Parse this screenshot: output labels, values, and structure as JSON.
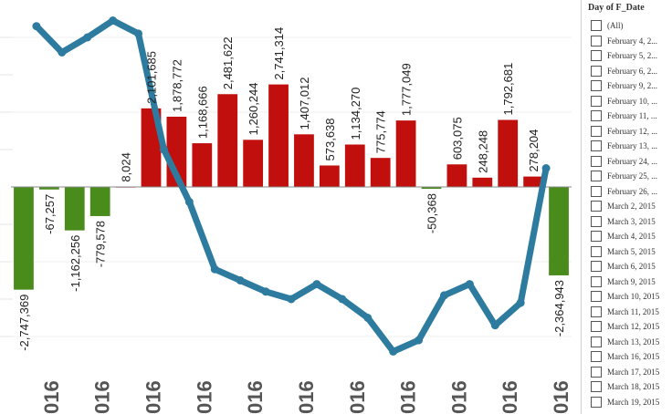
{
  "chart_data": {
    "type": "bar",
    "bar_values": [
      -2747369,
      -67257,
      -1162256,
      -779578,
      8024,
      2101685,
      1878772,
      1168666,
      2481622,
      1260244,
      2741314,
      1407012,
      573638,
      1134270,
      775774,
      1777049,
      -50368,
      603075,
      248248,
      1792681,
      278204,
      -2364943
    ],
    "bar_labels": [
      "-2,747,369",
      "-67,257",
      "-1,162,256",
      "-779,578",
      "8,024",
      "2,101,685",
      "1,878,772",
      "1,168,666",
      "2,481,622",
      "1,260,244",
      "2,741,314",
      "1,407,012",
      "573,638",
      "1,134,270",
      "775,774",
      "1,777,049",
      "-50,368",
      "603,075",
      "248,248",
      "1,792,681",
      "278,204",
      "-2,364,943"
    ],
    "line_values": [
      4300000,
      3600000,
      4000000,
      4450000,
      4100000,
      1000000,
      -400000,
      -2200000,
      -2500000,
      -2800000,
      -3000000,
      -2600000,
      -3000000,
      -3500000,
      -4400000,
      -4100000,
      -2900000,
      -2600000,
      -3700000,
      -3100000,
      500000
    ],
    "x_tick_labels": [
      "016",
      "016",
      "016",
      "016",
      "016",
      "016",
      "016",
      "016",
      "016",
      "016",
      "016"
    ],
    "ylim": [
      -4800000,
      4800000
    ],
    "colors": {
      "positive": "#c00f0c",
      "negative": "#4a8c1c",
      "line": "#2e7ba0"
    }
  },
  "filter": {
    "title": "Day of F_Date",
    "items": [
      "(All)",
      "February 4, 2...",
      "February 5, 2...",
      "February 6, 2...",
      "February 9, 2...",
      "February 10, ...",
      "February 11, ...",
      "February 12, ...",
      "February 13, ...",
      "February 24, ...",
      "February 25, ...",
      "February 26, ...",
      "March 2, 2015",
      "March 3, 2015",
      "March 4, 2015",
      "March 5, 2015",
      "March 6, 2015",
      "March 9, 2015",
      "March 10, 2015",
      "March 11, 2015",
      "March 12, 2015",
      "March 13, 2015",
      "March 16, 2015",
      "March 17, 2015",
      "March 18, 2015",
      "March 19, 2015"
    ]
  }
}
